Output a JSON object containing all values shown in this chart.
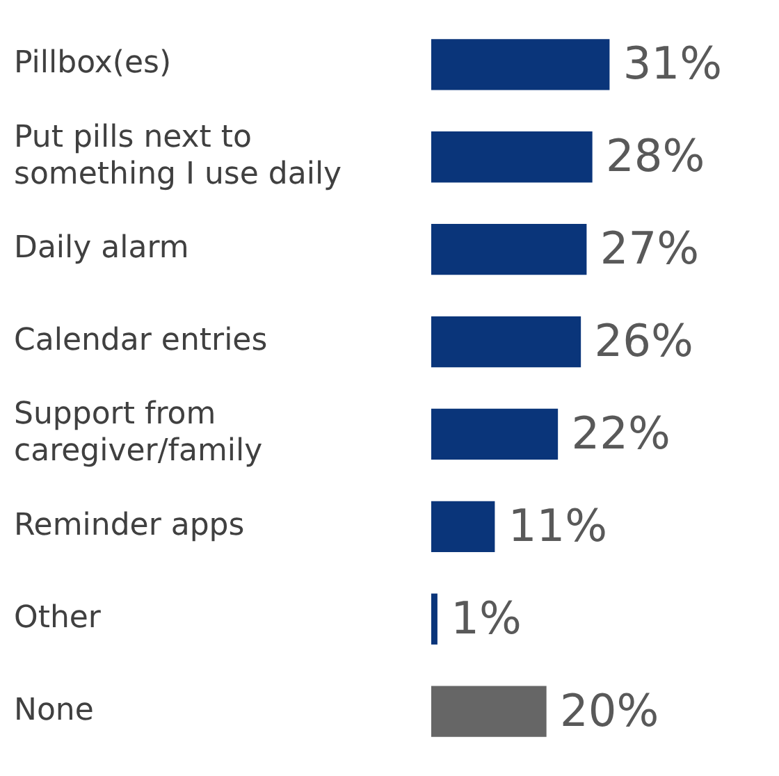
{
  "chart_data": {
    "type": "bar",
    "orientation": "horizontal",
    "categories": [
      "Pillbox(es)",
      "Put pills next to something I use daily",
      "Daily alarm",
      "Calendar entries",
      "Support from caregiver/family",
      "Reminder apps",
      "Other",
      "None"
    ],
    "values": [
      31,
      28,
      27,
      26,
      22,
      11,
      1,
      20
    ],
    "colors": [
      "#0a357a",
      "#0a357a",
      "#0a357a",
      "#0a357a",
      "#0a357a",
      "#0a357a",
      "#0a357a",
      "#666666"
    ],
    "value_labels": [
      "31%",
      "28%",
      "27%",
      "26%",
      "22%",
      "11%",
      "1%",
      "20%"
    ],
    "tick_labels": "y",
    "grid": false,
    "legend": false
  }
}
